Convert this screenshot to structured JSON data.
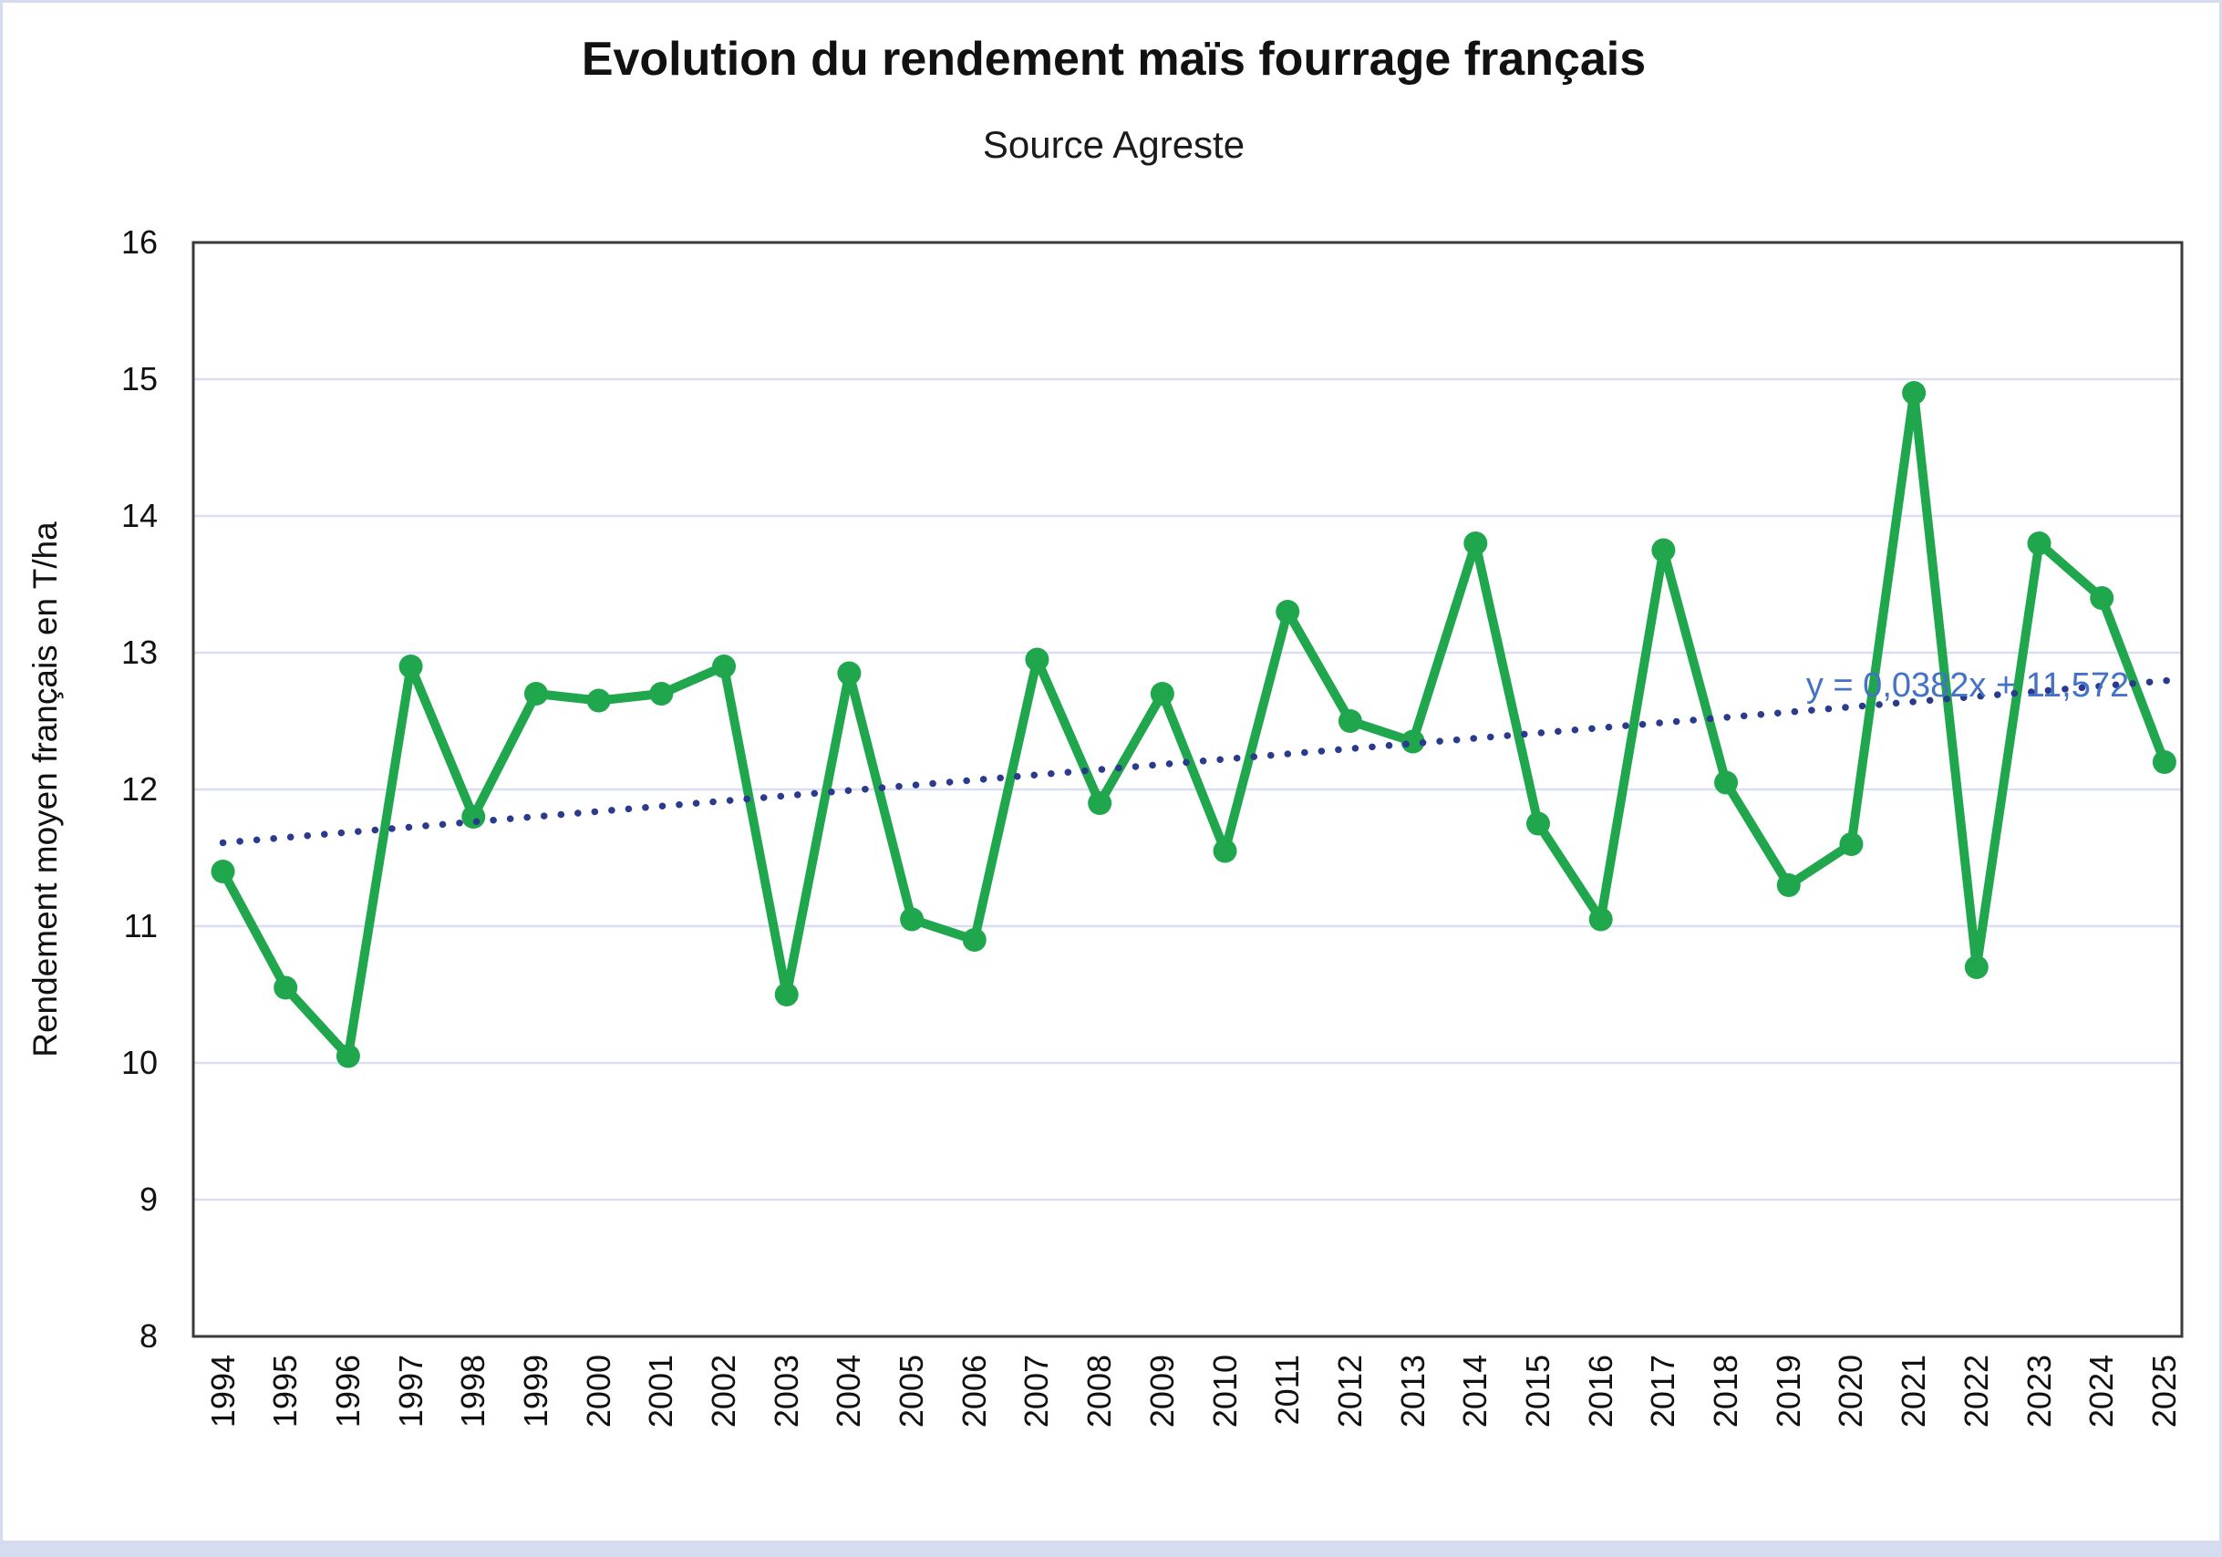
{
  "chart_data": {
    "type": "line",
    "title": "Evolution du rendement maïs fourrage français",
    "subtitle": "Source Agreste",
    "ylabel": "Rendement moyen français en T/ha",
    "xlabel": "",
    "categories": [
      "1994",
      "1995",
      "1996",
      "1997",
      "1998",
      "1999",
      "2000",
      "2001",
      "2002",
      "2003",
      "2004",
      "2005",
      "2006",
      "2007",
      "2008",
      "2009",
      "2010",
      "2011",
      "2012",
      "2013",
      "2014",
      "2015",
      "2016",
      "2017",
      "2018",
      "2019",
      "2020",
      "2021",
      "2022",
      "2023",
      "2024",
      "2025"
    ],
    "series": [
      {
        "name": "Rendement moyen français en T/ha",
        "values": [
          11.4,
          10.55,
          10.05,
          12.9,
          11.8,
          12.7,
          12.65,
          12.7,
          12.9,
          10.5,
          12.85,
          11.05,
          10.9,
          12.95,
          11.9,
          12.7,
          11.55,
          13.3,
          12.5,
          12.35,
          13.8,
          11.75,
          11.05,
          13.75,
          12.05,
          11.3,
          11.6,
          14.9,
          10.7,
          13.8,
          13.4,
          12.2
        ]
      }
    ],
    "trendline": {
      "equation": "y = 0,0382x + 11,572",
      "slope": 0.0382,
      "intercept": 11.572,
      "style": "dotted"
    },
    "ylim": [
      8,
      16
    ],
    "ytick_step": 1,
    "yticks": [
      "8",
      "9",
      "10",
      "11",
      "12",
      "13",
      "14",
      "15",
      "16"
    ],
    "grid": true,
    "legend": "none",
    "colors": {
      "series_line": "#20A64C",
      "trendline": "#2A3A8C",
      "equation_text": "#4472C4",
      "gridline": "#DADEF2",
      "plot_border": "#3A3A3A",
      "text": "#111111",
      "canvas_border": "#D6DCF0",
      "background": "#FFFFFF"
    }
  }
}
